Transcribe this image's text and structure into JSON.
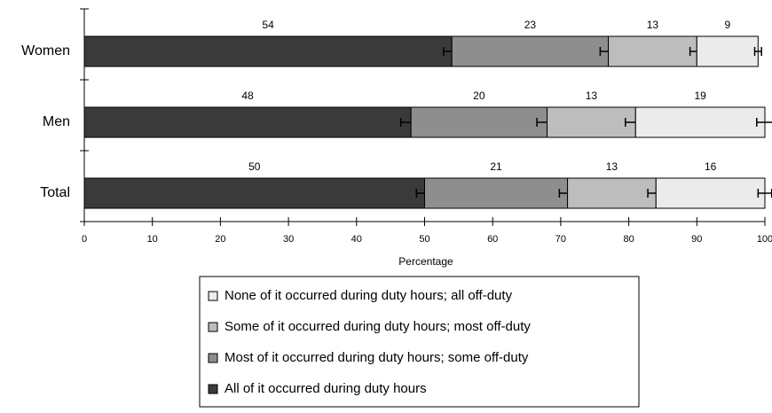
{
  "chart_data": {
    "type": "stacked_barh",
    "categories": [
      "Women",
      "Men",
      "Total"
    ],
    "series": [
      {
        "name": "All of it occurred during duty hours",
        "color": "#3a3a3a",
        "values": [
          54,
          48,
          50
        ],
        "errors": [
          1.2,
          1.5,
          1.2
        ]
      },
      {
        "name": "Most of it occurred during duty hours; some off-duty",
        "color": "#8e8e8e",
        "values": [
          23,
          20,
          21
        ],
        "errors": [
          1.2,
          1.5,
          1.2
        ]
      },
      {
        "name": "Some of it occurred during duty hours; most off-duty",
        "color": "#bdbdbd",
        "values": [
          13,
          13,
          13
        ],
        "errors": [
          1.0,
          1.5,
          1.2
        ]
      },
      {
        "name": "None of it occurred during duty hours; all off-duty",
        "color": "#ebebeb",
        "values": [
          9,
          19,
          16
        ],
        "errors": [
          0.5,
          1.2,
          1.0
        ]
      }
    ],
    "xlabel": "Percentage",
    "xlim": [
      0,
      100
    ],
    "xticks": [
      0,
      10,
      20,
      30,
      40,
      50,
      60,
      70,
      80,
      90,
      100
    ]
  }
}
